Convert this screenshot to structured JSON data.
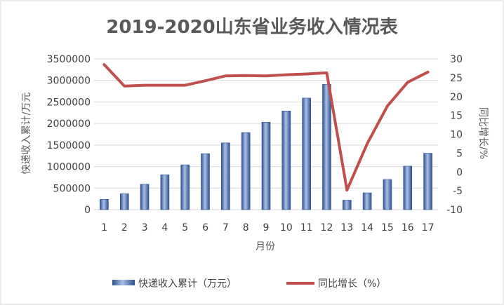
{
  "chart_data": {
    "type": "bar",
    "title": "2019-2020山东省业务收入情况表",
    "xlabel": "月份",
    "ylabel": "快递收入累计/万元",
    "y2label": "同比增长/%",
    "categories": [
      "1",
      "2",
      "3",
      "4",
      "5",
      "6",
      "7",
      "8",
      "9",
      "10",
      "11",
      "12",
      "13",
      "14",
      "15",
      "16",
      "17"
    ],
    "series": [
      {
        "name": "快递收入累计（万元）",
        "type": "bar",
        "axis": "left",
        "values": [
          240000,
          370000,
          590000,
          810000,
          1040000,
          1300000,
          1550000,
          1790000,
          2030000,
          2290000,
          2590000,
          2910000,
          220000,
          390000,
          700000,
          1010000,
          1310000
        ]
      },
      {
        "name": "同比增长（%）",
        "type": "line",
        "axis": "right",
        "values": [
          28.5,
          22.8,
          23.0,
          23.0,
          23.0,
          24.2,
          25.5,
          25.6,
          25.5,
          25.8,
          26.0,
          26.3,
          -4.8,
          7.5,
          17.5,
          23.8,
          26.5
        ]
      }
    ],
    "ylim": [
      0,
      3500000
    ],
    "yticks": [
      "0",
      "500000",
      "1000000",
      "1500000",
      "2000000",
      "2500000",
      "3000000",
      "3500000"
    ],
    "y2lim": [
      -10,
      30
    ],
    "y2ticks": [
      "-10",
      "-5",
      "0",
      "5",
      "10",
      "15",
      "20",
      "25",
      "30"
    ],
    "grid": true,
    "legend_position": "bottom",
    "colors": {
      "bar": "#4a72b6",
      "bar_dark": "#2f528f",
      "bar_light": "#a9c0e8",
      "line": "#c0504d",
      "grid": "#d9d9d9"
    }
  }
}
